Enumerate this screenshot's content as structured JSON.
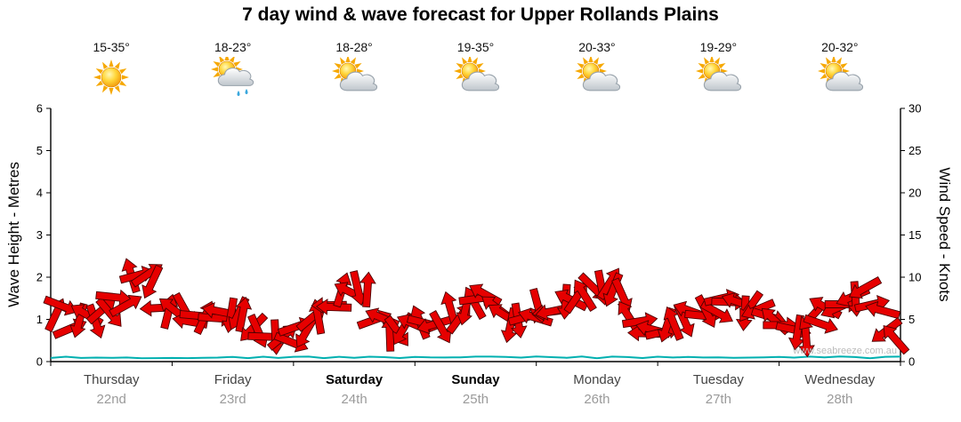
{
  "title": "7 day wind & wave forecast for Upper Rollands Plains",
  "watermark": "www.seabreeze.com.au",
  "axes": {
    "left_label": "Wave Height - Metres",
    "right_label": "Wind Speed - Knots"
  },
  "days": [
    {
      "name": "Thursday",
      "date": "22nd",
      "temp": "15-35°",
      "icon": "sunny",
      "bold": false
    },
    {
      "name": "Friday",
      "date": "23rd",
      "temp": "18-23°",
      "icon": "sun-cloud-rain",
      "bold": false
    },
    {
      "name": "Saturday",
      "date": "24th",
      "temp": "18-28°",
      "icon": "sun-cloud",
      "bold": true
    },
    {
      "name": "Sunday",
      "date": "25th",
      "temp": "19-35°",
      "icon": "sun-cloud",
      "bold": true
    },
    {
      "name": "Monday",
      "date": "26th",
      "temp": "20-33°",
      "icon": "sun-cloud",
      "bold": false
    },
    {
      "name": "Tuesday",
      "date": "27th",
      "temp": "19-29°",
      "icon": "sun-cloud",
      "bold": false
    },
    {
      "name": "Wednesday",
      "date": "28th",
      "temp": "20-32°",
      "icon": "sun-cloud",
      "bold": false
    }
  ],
  "chart_data": {
    "type": "area",
    "title": "7 day wind & wave forecast for Upper Rollands Plains",
    "x_unit": "3-hourly samples, 8 per day across 7 days (Thursday 22nd - Wednesday 28th)",
    "left_axis": {
      "label": "Wave Height - Metres",
      "ylim": [
        0,
        6
      ],
      "ticks": [
        0,
        1,
        2,
        3,
        4,
        5,
        6
      ]
    },
    "right_axis": {
      "label": "Wind Speed - Knots",
      "ylim": [
        0,
        30
      ],
      "ticks": [
        0,
        5,
        10,
        15,
        20,
        25,
        30
      ]
    },
    "grid": false,
    "legend": false,
    "series": [
      {
        "name": "Wind Speed",
        "unit": "knots",
        "color": "#e60000",
        "style": "wind-arrows",
        "values": [
          6,
          4.5,
          5,
          5.5,
          7,
          9.5,
          10,
          6.5,
          5.5,
          5.2,
          5.8,
          6.2,
          5,
          4,
          3,
          2.8,
          3.5,
          5,
          6.5,
          8,
          8.8,
          5,
          3.5,
          4.2,
          5,
          4.2,
          5.5,
          7,
          7.5,
          6,
          4.8,
          5.2,
          6,
          6.5,
          7.5,
          8.5,
          9.5,
          8,
          5.5,
          4,
          3.8,
          4.5,
          5.5,
          6.5,
          7,
          6.5,
          5.8,
          4.8,
          4.5,
          3.2,
          5,
          6.5,
          7.5,
          8,
          6.5,
          3
        ]
      },
      {
        "name": "Wave Height",
        "unit": "metres",
        "color": "#00b0b0",
        "style": "line",
        "approx_constant_value": 0.1
      }
    ]
  }
}
